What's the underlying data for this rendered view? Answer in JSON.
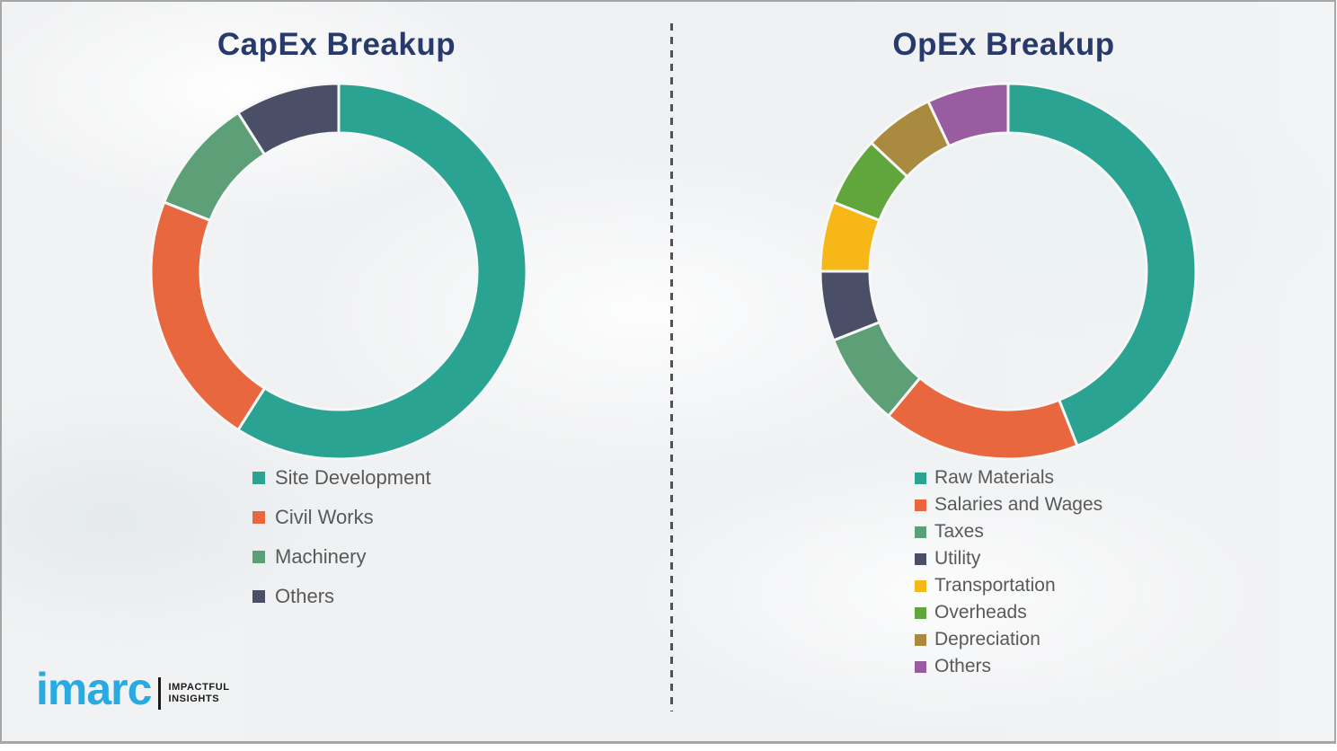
{
  "chart_data": [
    {
      "type": "pie",
      "subtype": "donut",
      "title": "CapEx Breakup",
      "categories": [
        "Site Development",
        "Civil Works",
        "Machinery",
        "Others"
      ],
      "values": [
        59,
        22,
        10,
        9
      ],
      "values_note": "percent shares estimated from arc angles; no numeric labels shown in image",
      "colors": [
        "#2AA392",
        "#E8673F",
        "#5DA078",
        "#4A4E67"
      ],
      "start_angle_deg": 0,
      "direction": "clockwise",
      "legend_position": "below"
    },
    {
      "type": "pie",
      "subtype": "donut",
      "title": "OpEx Breakup",
      "categories": [
        "Raw Materials",
        "Salaries and Wages",
        "Taxes",
        "Utility",
        "Transportation",
        "Overheads",
        "Depreciation",
        "Others"
      ],
      "values": [
        44,
        17,
        8,
        6,
        6,
        6,
        6,
        7
      ],
      "values_note": "percent shares estimated from arc angles; no numeric labels shown in image",
      "colors": [
        "#2AA392",
        "#E8673F",
        "#5DA078",
        "#4A4E67",
        "#F6B717",
        "#61A53D",
        "#A98A3F",
        "#995CA0"
      ],
      "start_angle_deg": 0,
      "direction": "clockwise",
      "legend_position": "below"
    }
  ],
  "logo": {
    "brand": "imarc",
    "tagline_line1": "IMPACTFUL",
    "tagline_line2": "INSIGHTS"
  },
  "theme": {
    "title_color": "#273A6B",
    "legend_text_color": "#595959",
    "divider_color": "#525252",
    "frame_border_color": "#A6A6A6",
    "background_color": "#F0F1F2",
    "logo_blue": "#29ABE2",
    "segment_gap_color": "#F6F7F7"
  }
}
